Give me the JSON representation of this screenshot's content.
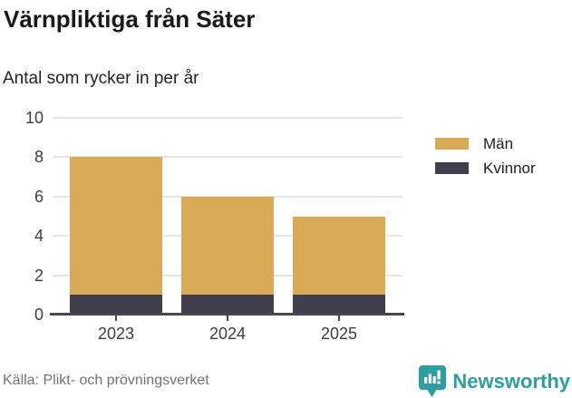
{
  "title": "Värnpliktiga från Säter",
  "subtitle": "Antal som rycker in per år",
  "source": "Källa: Plikt- och prövningsverket",
  "brand": {
    "name": "Newsworthy"
  },
  "colors": {
    "man": "#d9ab57",
    "kvinnor": "#413f4e",
    "grid": "#e6e6e6",
    "axis": "#47454f",
    "tick_text": "#3d3d44",
    "source_text": "#737373",
    "brand_teal": "#2f9e9e"
  },
  "chart_data": {
    "type": "bar",
    "stacked": true,
    "title": "Värnpliktiga från Säter",
    "subtitle": "Antal som rycker in per år",
    "categories": [
      "2023",
      "2024",
      "2025"
    ],
    "series": [
      {
        "name": "Kvinnor",
        "color": "#413f4e",
        "values": [
          1,
          1,
          1
        ]
      },
      {
        "name": "Män",
        "color": "#d9ab57",
        "values": [
          7,
          5,
          4
        ]
      }
    ],
    "totals": [
      8,
      6,
      5
    ],
    "legend": [
      {
        "label": "Män",
        "color": "#d9ab57"
      },
      {
        "label": "Kvinnor",
        "color": "#413f4e"
      }
    ],
    "legend_position": "right",
    "xlabel": "",
    "ylabel": "",
    "ylim": [
      0,
      10
    ],
    "yticks": [
      0,
      2,
      4,
      6,
      8,
      10
    ],
    "grid": true
  }
}
